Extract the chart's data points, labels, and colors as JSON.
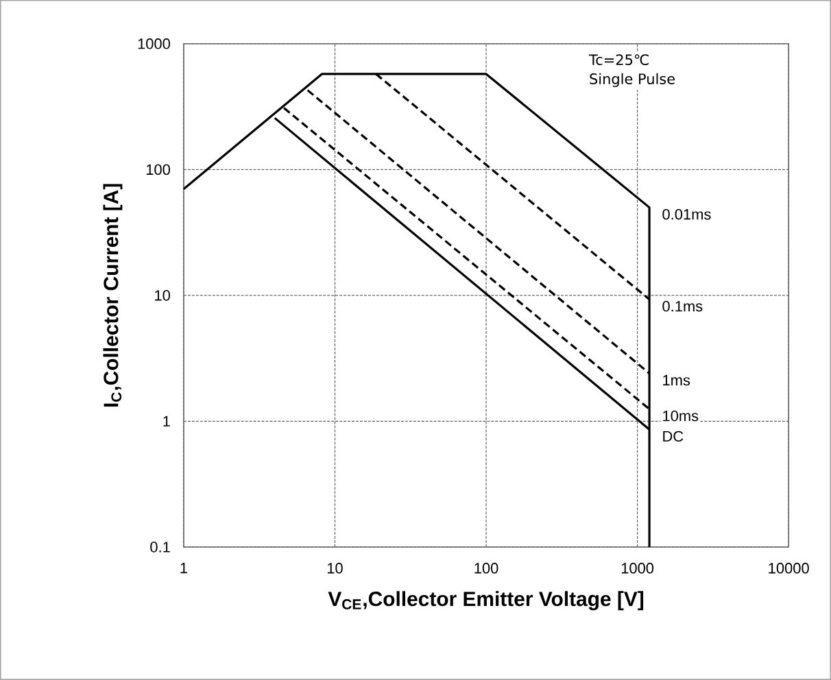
{
  "chart_data": {
    "type": "line",
    "xlabel": "V$_{CE}$,Collector Emitter Voltage  [V]",
    "ylabel": "I$_{C}$,Collector Current [A]",
    "log": "xy",
    "grid": true,
    "legend": false,
    "marker": "none",
    "xlim": [
      1,
      10000
    ],
    "xticks": [
      1,
      10,
      100,
      1000,
      10000
    ],
    "ylim": [
      0.1,
      1000
    ],
    "yticks": [
      0.1,
      1,
      10,
      100,
      1000
    ],
    "annotations": [
      "Tc=25℃",
      "Single Pulse"
    ],
    "series": [
      {
        "name": "0.01ms",
        "color": "#000000",
        "line_style": "solid",
        "x": [
          1,
          8.2,
          100,
          1200,
          1200
        ],
        "values": [
          70,
          575,
          575,
          50,
          0.1
        ]
      },
      {
        "name": "0.1ms",
        "color": "#000000",
        "line_style": "dashed",
        "x": [
          18.7,
          1200
        ],
        "values": [
          575,
          9.3
        ]
      },
      {
        "name": "1ms",
        "color": "#000000",
        "line_style": "dashed",
        "x": [
          6.6,
          1200
        ],
        "values": [
          427,
          2.4
        ]
      },
      {
        "name": "10ms",
        "color": "#000000",
        "line_style": "dashed",
        "x": [
          4.6,
          1200
        ],
        "values": [
          309,
          1.25
        ]
      },
      {
        "name": "DC",
        "color": "#000000",
        "line_style": "solid",
        "x": [
          4.0,
          1200
        ],
        "values": [
          257,
          0.86
        ]
      }
    ]
  }
}
